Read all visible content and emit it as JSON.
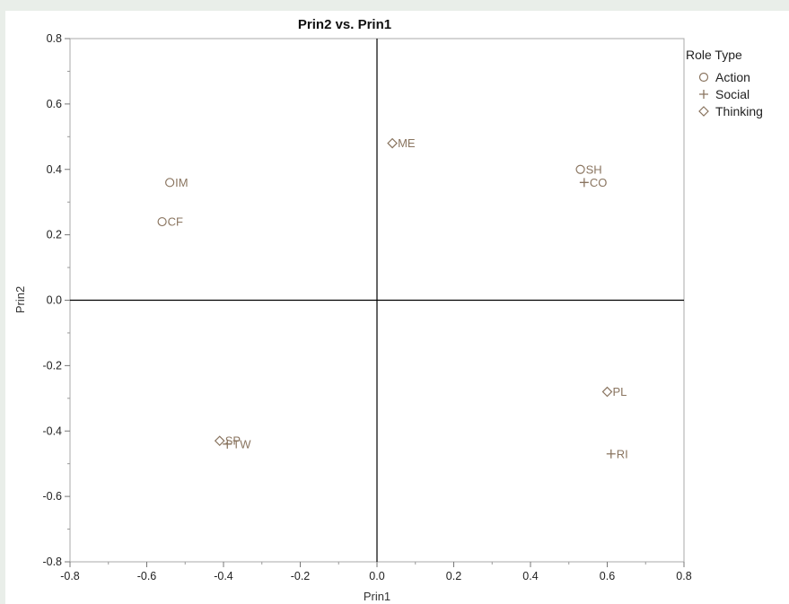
{
  "chart_data": {
    "type": "scatter",
    "title": "Prin2 vs. Prin1",
    "xlabel": "Prin1",
    "ylabel": "Prin2",
    "xlim": [
      -0.8,
      0.8
    ],
    "ylim": [
      -0.8,
      0.8
    ],
    "xticks": [
      "-0.8",
      "-0.6",
      "-0.4",
      "-0.2",
      "0.0",
      "0.2",
      "0.4",
      "0.6",
      "0.8"
    ],
    "yticks": [
      "0.8",
      "0.6",
      "0.4",
      "0.2",
      "0.0",
      "-0.2",
      "-0.4",
      "-0.6",
      "-0.8"
    ],
    "reference_lines": {
      "x": 0,
      "y": 0
    },
    "grid": false,
    "legend": {
      "title": "Role Type",
      "placement": "right"
    },
    "point_color": "#8a7560",
    "series": [
      {
        "name": "Action",
        "marker": "circle",
        "points": [
          {
            "label": "IM",
            "x": -0.54,
            "y": 0.36
          },
          {
            "label": "CF",
            "x": -0.56,
            "y": 0.24
          },
          {
            "label": "SH",
            "x": 0.53,
            "y": 0.4
          }
        ]
      },
      {
        "name": "Social",
        "marker": "plus",
        "points": [
          {
            "label": "CO",
            "x": 0.54,
            "y": 0.36
          },
          {
            "label": "TW",
            "x": -0.39,
            "y": -0.44
          },
          {
            "label": "RI",
            "x": 0.61,
            "y": -0.47
          }
        ]
      },
      {
        "name": "Thinking",
        "marker": "diamond",
        "points": [
          {
            "label": "ME",
            "x": 0.04,
            "y": 0.48
          },
          {
            "label": "PL",
            "x": 0.6,
            "y": -0.28
          },
          {
            "label": "SP",
            "x": -0.41,
            "y": -0.43
          }
        ]
      }
    ]
  }
}
